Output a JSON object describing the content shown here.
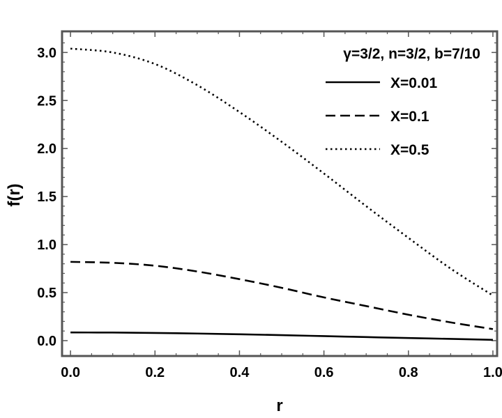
{
  "chart_data": {
    "type": "line",
    "title": "",
    "xlabel": "r",
    "ylabel": "f(r)",
    "xlim": [
      -0.02,
      1.01
    ],
    "ylim": [
      -0.16,
      3.22
    ],
    "xticks": [
      "0.0",
      "0.2",
      "0.4",
      "0.6",
      "0.8",
      "1.0"
    ],
    "xtick_values": [
      0,
      0.2,
      0.4,
      0.6,
      0.8,
      1.0
    ],
    "yticks": [
      "0.0",
      "0.5",
      "1.0",
      "1.5",
      "2.0",
      "2.5",
      "3.0"
    ],
    "ytick_values": [
      0,
      0.5,
      1.0,
      1.5,
      2.0,
      2.5,
      3.0
    ],
    "grid": false,
    "legend_placement": "top-right",
    "legend_title": "γ=3/2, n=3/2, b=7/10",
    "series": [
      {
        "name": "X=0.01",
        "style": "solid",
        "x": [
          0.0,
          0.1,
          0.2,
          0.3,
          0.4,
          0.5,
          0.6,
          0.7,
          0.8,
          0.9,
          1.0
        ],
        "y": [
          0.085,
          0.084,
          0.08,
          0.074,
          0.066,
          0.057,
          0.047,
          0.037,
          0.027,
          0.018,
          0.008
        ]
      },
      {
        "name": "X=0.1",
        "style": "dashed",
        "x": [
          0.0,
          0.1,
          0.2,
          0.3,
          0.4,
          0.5,
          0.6,
          0.7,
          0.8,
          0.9,
          1.0
        ],
        "y": [
          0.82,
          0.81,
          0.78,
          0.72,
          0.64,
          0.55,
          0.45,
          0.36,
          0.27,
          0.19,
          0.12
        ]
      },
      {
        "name": "X=0.5",
        "style": "dotted",
        "x": [
          0.0,
          0.1,
          0.2,
          0.3,
          0.4,
          0.5,
          0.6,
          0.7,
          0.8,
          0.9,
          1.0
        ],
        "y": [
          3.04,
          3.0,
          2.88,
          2.66,
          2.38,
          2.07,
          1.74,
          1.4,
          1.07,
          0.75,
          0.47
        ]
      }
    ],
    "colors": {
      "line": "#000000",
      "frame": "#555555",
      "background": "#ffffff"
    }
  }
}
